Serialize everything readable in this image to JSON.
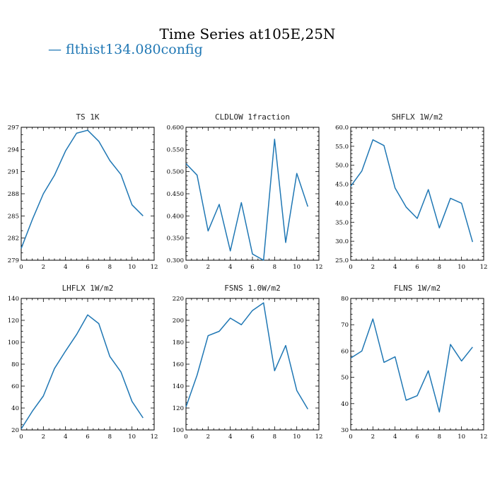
{
  "figure": {
    "title": "Time Series at105E,25N",
    "legend": "— flthist134.080config",
    "series_color": "#1f77b4"
  },
  "chart_data": [
    {
      "type": "line",
      "title": "TS  1K",
      "x": [
        0,
        1,
        2,
        3,
        4,
        5,
        6,
        7,
        8,
        9,
        10,
        11
      ],
      "values": [
        280.6,
        284.5,
        288.0,
        290.5,
        293.8,
        296.2,
        296.6,
        295.1,
        292.5,
        290.6,
        286.5,
        285.0
      ],
      "xlim": [
        0,
        12
      ],
      "ylim": [
        279,
        297
      ],
      "xticks": [
        0,
        2,
        4,
        6,
        8,
        10,
        12
      ],
      "yticks": [
        279,
        282,
        285,
        288,
        291,
        294,
        297
      ],
      "ytick_labels": [
        "279",
        "282",
        "285",
        "288",
        "291",
        "294",
        "297"
      ],
      "y_minor": 3
    },
    {
      "type": "line",
      "title": "CLDLOW  1fraction",
      "x": [
        0,
        1,
        2,
        3,
        4,
        5,
        6,
        7,
        8,
        9,
        10,
        11
      ],
      "values": [
        0.518,
        0.492,
        0.366,
        0.426,
        0.321,
        0.43,
        0.314,
        0.3,
        0.573,
        0.34,
        0.496,
        0.421
      ],
      "xlim": [
        0,
        12
      ],
      "ylim": [
        0.3,
        0.6
      ],
      "xticks": [
        0,
        2,
        4,
        6,
        8,
        10,
        12
      ],
      "yticks": [
        0.3,
        0.35,
        0.4,
        0.45,
        0.5,
        0.55,
        0.6
      ],
      "ytick_labels": [
        "0.300",
        "0.350",
        "0.400",
        "0.450",
        "0.500",
        "0.550",
        "0.600"
      ],
      "y_minor": 5
    },
    {
      "type": "line",
      "title": "SHFLX  1W/m2",
      "x": [
        0,
        1,
        2,
        3,
        4,
        5,
        6,
        7,
        8,
        9,
        10,
        11
      ],
      "values": [
        44.5,
        48.5,
        56.7,
        55.2,
        44.0,
        39.0,
        36.0,
        43.6,
        33.5,
        41.3,
        40.0,
        29.8
      ],
      "xlim": [
        0,
        12
      ],
      "ylim": [
        25,
        60
      ],
      "xticks": [
        0,
        2,
        4,
        6,
        8,
        10,
        12
      ],
      "yticks": [
        25,
        30,
        35,
        40,
        45,
        50,
        55,
        60
      ],
      "ytick_labels": [
        "25.0",
        "30.0",
        "35.0",
        "40.0",
        "45.0",
        "50.0",
        "55.0",
        "60.0"
      ],
      "y_minor": 5
    },
    {
      "type": "line",
      "title": "LHFLX  1W/m2",
      "x": [
        0,
        1,
        2,
        3,
        4,
        5,
        6,
        7,
        8,
        9,
        10,
        11
      ],
      "values": [
        21,
        37,
        51,
        76,
        92,
        107,
        125,
        117,
        87,
        73,
        46,
        31
      ],
      "xlim": [
        0,
        12
      ],
      "ylim": [
        20,
        140
      ],
      "xticks": [
        0,
        2,
        4,
        6,
        8,
        10,
        12
      ],
      "yticks": [
        20,
        40,
        60,
        80,
        100,
        120,
        140
      ],
      "ytick_labels": [
        "20",
        "40",
        "60",
        "80",
        "100",
        "120",
        "140"
      ],
      "y_minor": 4
    },
    {
      "type": "line",
      "title": "FSNS  1.0W/m2",
      "x": [
        0,
        1,
        2,
        3,
        4,
        5,
        6,
        7,
        8,
        9,
        10,
        11
      ],
      "values": [
        121,
        150,
        186,
        190,
        202,
        196,
        209,
        216,
        154,
        177,
        136,
        119
      ],
      "xlim": [
        0,
        12
      ],
      "ylim": [
        100,
        220
      ],
      "xticks": [
        0,
        2,
        4,
        6,
        8,
        10,
        12
      ],
      "yticks": [
        100,
        120,
        140,
        160,
        180,
        200,
        220
      ],
      "ytick_labels": [
        "100",
        "120",
        "140",
        "160",
        "180",
        "200",
        "220"
      ],
      "y_minor": 4
    },
    {
      "type": "line",
      "title": "FLNS  1W/m2",
      "x": [
        0,
        1,
        2,
        3,
        4,
        5,
        6,
        7,
        8,
        9,
        10,
        11
      ],
      "values": [
        57.3,
        60.0,
        72.2,
        55.7,
        57.8,
        41.3,
        43.0,
        52.5,
        36.8,
        62.5,
        56.2,
        61.5
      ],
      "xlim": [
        0,
        12
      ],
      "ylim": [
        30,
        80
      ],
      "xticks": [
        0,
        2,
        4,
        6,
        8,
        10,
        12
      ],
      "yticks": [
        30,
        40,
        50,
        60,
        70,
        80
      ],
      "ytick_labels": [
        "30",
        "40",
        "50",
        "60",
        "70",
        "80"
      ],
      "y_minor": 5
    }
  ]
}
